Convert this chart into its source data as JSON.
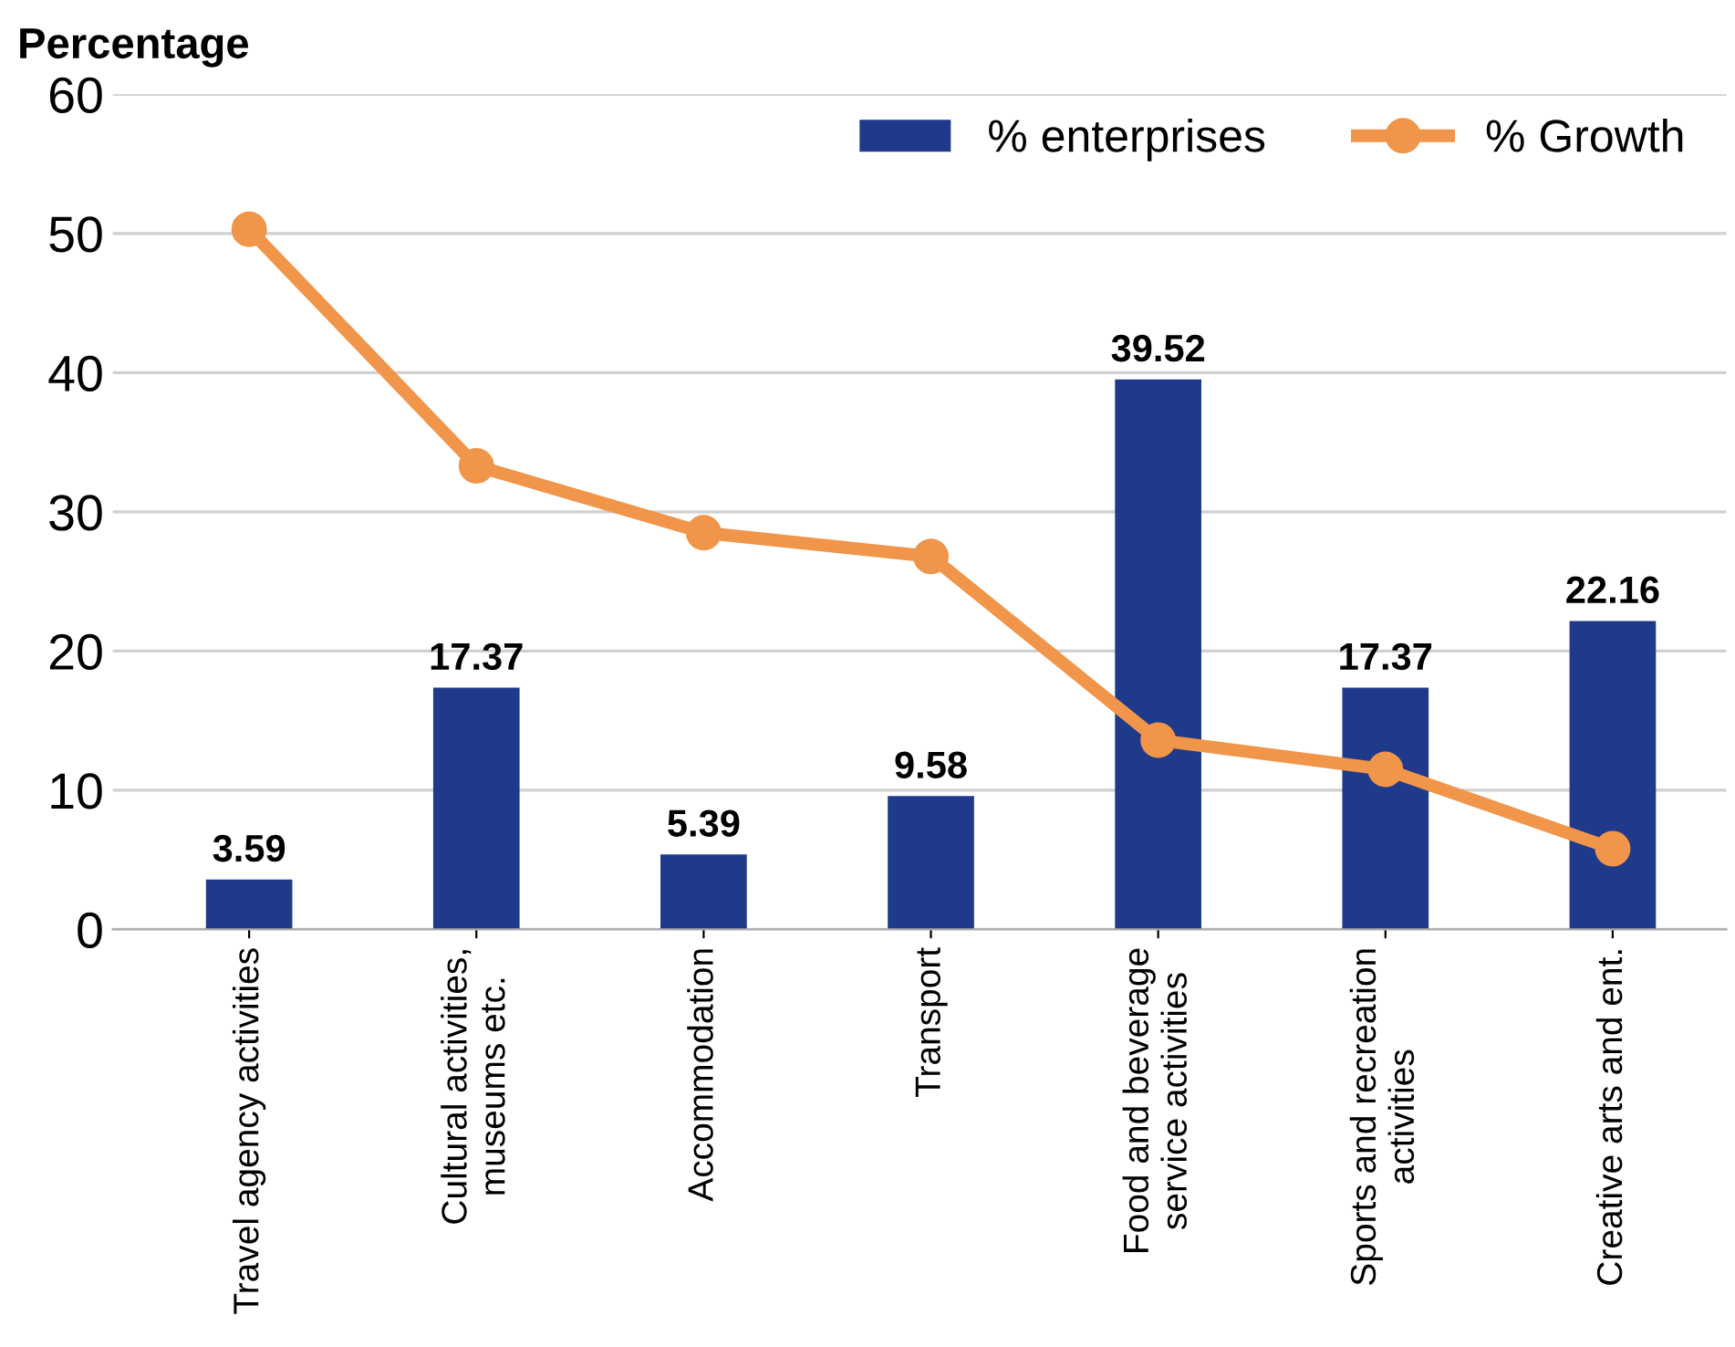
{
  "chart_data": {
    "type": "bar",
    "ylabel": "Percentage",
    "categories": [
      "Travel agency activities",
      "Cultural activities,\nmuseums etc.",
      "Accommodation",
      "Transport",
      "Food and beverage\nservice activities",
      "Sports and recreation\nactivities",
      "Creative arts and ent."
    ],
    "series": [
      {
        "name": "% enterprises",
        "color": "#1f3a8a",
        "values": [
          3.59,
          17.37,
          5.39,
          9.58,
          39.52,
          17.37,
          22.16
        ],
        "value_labels": [
          "3.59",
          "17.37",
          "5.39",
          "9.58",
          "39.52",
          "17.37",
          "22.16"
        ]
      },
      {
        "name": "% Growth",
        "type": "line",
        "color": "#f0954a",
        "marker": "circle",
        "values": [
          50.3,
          33.3,
          28.5,
          26.8,
          13.6,
          11.5,
          5.8
        ]
      }
    ],
    "ylim": [
      0,
      60
    ],
    "yticks": [
      0,
      10,
      20,
      30,
      40,
      50,
      60
    ],
    "grid": "y",
    "legend": "top right"
  }
}
